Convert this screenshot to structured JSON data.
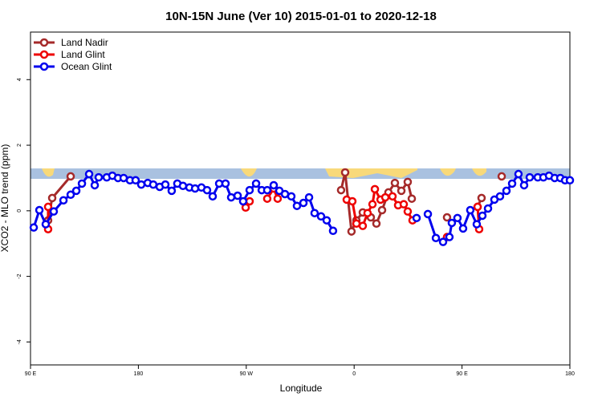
{
  "chart_data": {
    "type": "line",
    "title": "10N-15N June (Ver 10)   2015-01-01 to 2020-12-18",
    "x_label": "Longitude",
    "y_label": "XCO2 - MLO trend (ppm)",
    "xlim": [
      90,
      540
    ],
    "ylim": [
      -4.7,
      5.45
    ],
    "xticks": [
      {
        "value": 90,
        "label": "90 E"
      },
      180,
      {
        "value": 270,
        "label": "90 W"
      },
      {
        "value": 360,
        "label": "0"
      },
      {
        "value": 450,
        "label": "90 E"
      },
      {
        "value": 540,
        "label": "180"
      }
    ],
    "yticks": [
      -4,
      -2,
      0,
      2,
      4
    ],
    "legend": "top-left",
    "series": [
      {
        "name": "Land Nadir",
        "color": "#a52a2a",
        "x": [
          104.7,
          108.1,
          123.5,
          null,
          349.1,
          352.5,
          357.8,
          361.9,
          367.2,
          373.9,
          378.6,
          383.3,
          388.6,
          394.0,
          399.4,
          404.7,
          408.1,
          null,
          437.5,
          null,
          463.0,
          466.3,
          null,
          483.1
        ],
        "values": [
          -0.29,
          0.39,
          1.05,
          null,
          0.63,
          1.17,
          -0.63,
          -0.29,
          -0.05,
          -0.2,
          -0.39,
          0.02,
          0.56,
          0.85,
          0.61,
          0.88,
          0.37,
          null,
          -0.2,
          null,
          0.12,
          0.39,
          null,
          1.05
        ]
      },
      {
        "name": "Land Glint",
        "color": "#ee0000",
        "x": [
          104.7,
          104.7,
          null,
          269.5,
          272.8,
          null,
          287.5,
          292.9,
          296.2,
          null,
          353.8,
          358.5,
          361.9,
          367.2,
          371.2,
          375.3,
          377.3,
          382.0,
          386.0,
          392.0,
          396.7,
          401.4,
          404.7,
          408.7,
          null,
          437.5,
          null,
          463.0,
          464.3
        ],
        "values": [
          0.12,
          -0.56,
          null,
          0.1,
          0.29,
          null,
          0.37,
          0.68,
          0.37,
          null,
          0.34,
          0.29,
          -0.39,
          -0.46,
          -0.07,
          0.2,
          0.66,
          0.34,
          0.41,
          0.44,
          0.17,
          0.2,
          -0.02,
          -0.29,
          null,
          -0.8,
          null,
          0.12,
          -0.56
        ]
      },
      {
        "name": "Ocean Glint",
        "color": "#0000ee",
        "x": [
          92.7,
          97.4,
          102.7,
          109.4,
          117.5,
          123.5,
          128.2,
          132.9,
          138.9,
          143.6,
          146.9,
          153.6,
          158.3,
          163.0,
          167.7,
          173.0,
          177.7,
          182.4,
          187.8,
          192.4,
          197.8,
          202.5,
          207.8,
          212.5,
          217.2,
          222.6,
          227.3,
          232.6,
          237.3,
          242.0,
          247.4,
          252.7,
          257.4,
          262.8,
          267.4,
          272.8,
          278.2,
          282.9,
          287.5,
          292.9,
          297.6,
          302.3,
          307.6,
          312.3,
          317.7,
          322.4,
          327.0,
          332.4,
          337.1,
          342.4,
          null,
          412.1,
          null,
          421.5,
          428.2,
          434.2,
          439.5,
          441.5,
          446.2,
          450.9,
          456.9,
          462.3,
          467.0,
          471.7,
          477.0,
          481.7,
          487.1,
          491.8,
          497.1,
          501.8,
          506.5,
          513.2,
          517.9,
          522.6,
          527.3,
          532.0,
          536.0,
          540.0
        ],
        "values": [
          -0.51,
          0.02,
          -0.41,
          -0.02,
          0.32,
          0.49,
          0.61,
          0.83,
          1.12,
          0.78,
          1.02,
          1.02,
          1.07,
          1.0,
          1.0,
          0.93,
          0.93,
          0.8,
          0.85,
          0.8,
          0.73,
          0.8,
          0.61,
          0.83,
          0.76,
          0.71,
          0.68,
          0.71,
          0.63,
          0.44,
          0.83,
          0.83,
          0.41,
          0.46,
          0.29,
          0.63,
          0.83,
          0.63,
          0.63,
          0.78,
          0.61,
          0.51,
          0.44,
          0.15,
          0.24,
          0.41,
          -0.07,
          -0.17,
          -0.29,
          -0.61,
          null,
          -0.22,
          null,
          -0.1,
          -0.83,
          -0.95,
          -0.8,
          -0.37,
          -0.22,
          -0.54,
          0.02,
          -0.41,
          -0.15,
          0.07,
          0.34,
          0.44,
          0.61,
          0.83,
          1.12,
          0.78,
          1.02,
          1.02,
          1.02,
          1.07,
          1.0,
          1.0,
          0.93,
          0.93
        ]
      }
    ]
  }
}
